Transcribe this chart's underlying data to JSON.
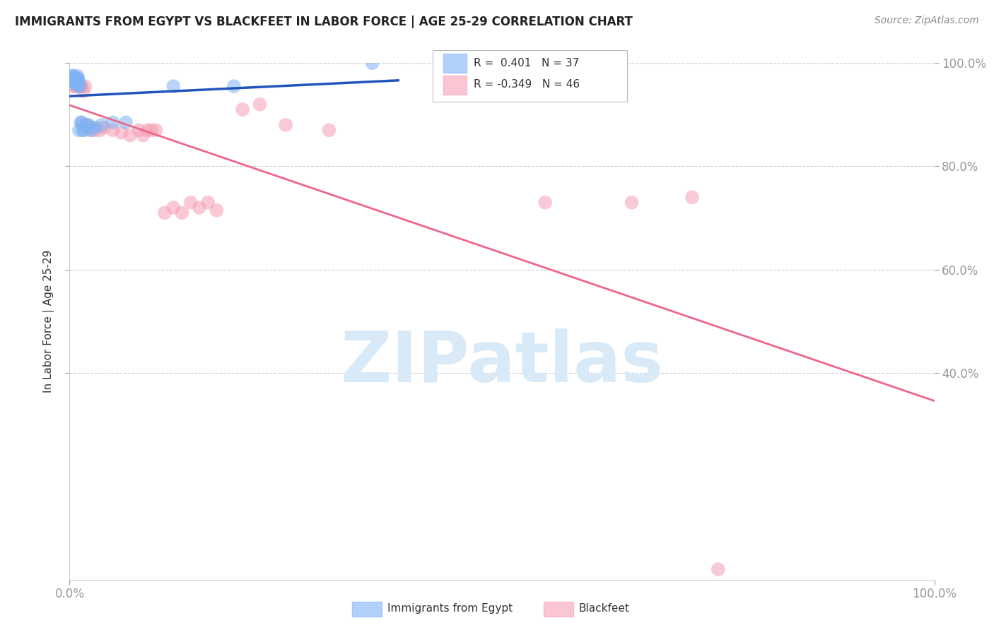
{
  "title": "IMMIGRANTS FROM EGYPT VS BLACKFEET IN LABOR FORCE | AGE 25-29 CORRELATION CHART",
  "source": "Source: ZipAtlas.com",
  "ylabel": "In Labor Force | Age 25-29",
  "xlim": [
    0.0,
    1.0
  ],
  "ylim": [
    0.0,
    1.0
  ],
  "ytick_positions": [
    0.4,
    0.6,
    0.8,
    1.0
  ],
  "ytick_labels": [
    "40.0%",
    "60.0%",
    "80.0%",
    "100.0%"
  ],
  "xtick_positions": [
    0.0,
    1.0
  ],
  "xtick_labels": [
    "0.0%",
    "100.0%"
  ],
  "egypt_R": 0.401,
  "egypt_N": 37,
  "blackfeet_R": -0.349,
  "blackfeet_N": 46,
  "egypt_color": "#7EB3F5",
  "blackfeet_color": "#F5A0B5",
  "egypt_line_color": "#2255BB",
  "blackfeet_line_color": "#EE6688",
  "background_color": "#FFFFFF",
  "grid_color": "#CCCCCC",
  "right_tick_color": "#4488FF",
  "watermark_color": "#D8EAF8",
  "egypt_points_x": [
    0.002,
    0.003,
    0.003,
    0.004,
    0.004,
    0.005,
    0.005,
    0.005,
    0.006,
    0.006,
    0.007,
    0.007,
    0.007,
    0.008,
    0.008,
    0.008,
    0.009,
    0.009,
    0.01,
    0.01,
    0.01,
    0.011,
    0.012,
    0.013,
    0.014,
    0.015,
    0.017,
    0.02,
    0.022,
    0.025,
    0.03,
    0.037,
    0.05,
    0.065,
    0.12,
    0.19,
    0.35
  ],
  "egypt_points_y": [
    0.97,
    0.97,
    0.975,
    0.975,
    0.965,
    0.97,
    0.97,
    0.965,
    0.97,
    0.965,
    0.965,
    0.96,
    0.97,
    0.965,
    0.97,
    0.96,
    0.965,
    0.975,
    0.965,
    0.97,
    0.955,
    0.87,
    0.955,
    0.885,
    0.885,
    0.87,
    0.87,
    0.88,
    0.88,
    0.87,
    0.875,
    0.88,
    0.885,
    0.885,
    0.955,
    0.955,
    1.0
  ],
  "blackfeet_points_x": [
    0.003,
    0.004,
    0.005,
    0.006,
    0.007,
    0.008,
    0.009,
    0.01,
    0.011,
    0.012,
    0.013,
    0.014,
    0.015,
    0.016,
    0.018,
    0.019,
    0.02,
    0.022,
    0.024,
    0.026,
    0.03,
    0.035,
    0.04,
    0.05,
    0.06,
    0.07,
    0.08,
    0.085,
    0.09,
    0.095,
    0.1,
    0.11,
    0.12,
    0.13,
    0.14,
    0.15,
    0.16,
    0.17,
    0.2,
    0.22,
    0.25,
    0.3,
    0.55,
    0.65,
    0.72,
    0.75
  ],
  "blackfeet_points_y": [
    0.965,
    0.96,
    0.955,
    0.955,
    0.955,
    0.955,
    0.96,
    0.96,
    0.955,
    0.955,
    0.955,
    0.955,
    0.88,
    0.945,
    0.955,
    0.88,
    0.88,
    0.875,
    0.87,
    0.875,
    0.87,
    0.87,
    0.875,
    0.87,
    0.865,
    0.86,
    0.87,
    0.86,
    0.87,
    0.87,
    0.87,
    0.71,
    0.72,
    0.71,
    0.73,
    0.72,
    0.73,
    0.715,
    0.91,
    0.92,
    0.88,
    0.87,
    0.73,
    0.73,
    0.74,
    0.02
  ]
}
